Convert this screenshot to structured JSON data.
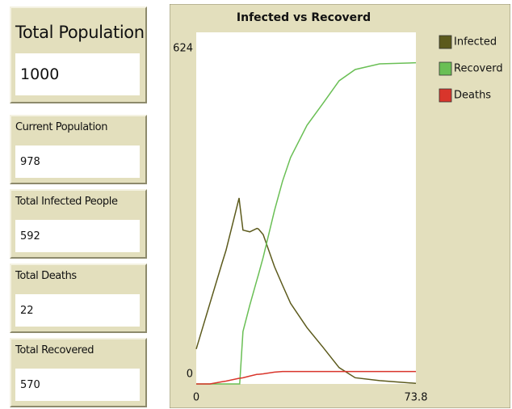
{
  "monitors": [
    {
      "label": "Total Population",
      "value": 1000
    },
    {
      "label": "Current  Population",
      "value": 978
    },
    {
      "label": "Total Infected People",
      "value": 592
    },
    {
      "label": "Total Deaths",
      "value": 22
    },
    {
      "label": "Total Recovered",
      "value": 570
    }
  ],
  "chart_data": {
    "type": "line",
    "title": "Infected vs Recoverd",
    "x": [
      0,
      4.6,
      8.7,
      10,
      14.4,
      14.6,
      15.7,
      18,
      20.4,
      20.9,
      22.5,
      26.3,
      29,
      31.7,
      37.2,
      42.6,
      48,
      53.4,
      61.6,
      73.8
    ],
    "series": [
      {
        "name": "Infected",
        "color": "#5c5a1c",
        "values": [
          62,
          143,
          215,
          237,
          330,
          320,
          273,
          270,
          276,
          275,
          265,
          208,
          175,
          143,
          100,
          65,
          29,
          11,
          6,
          1
        ]
      },
      {
        "name": "Recoverd",
        "color": "#6abf55",
        "values": [
          0,
          0,
          0,
          0,
          0,
          0,
          93,
          140,
          185,
          194,
          225,
          308,
          360,
          402,
          459,
          498,
          538,
          558,
          568,
          570
        ]
      },
      {
        "name": "Deaths",
        "color": "#d9352b",
        "values": [
          0,
          0,
          4,
          5,
          10,
          10,
          11,
          14,
          17,
          17,
          18,
          21,
          22,
          22,
          22,
          22,
          22,
          22,
          22,
          22
        ]
      }
    ],
    "xlim": [
      0,
      73.8
    ],
    "xticks": [
      0,
      73.8
    ],
    "ylim": [
      0,
      624
    ],
    "yticks": [
      0,
      624
    ],
    "grid": false,
    "legend": "right"
  }
}
